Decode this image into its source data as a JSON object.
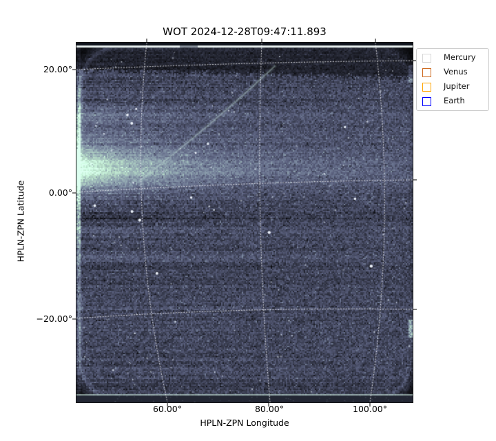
{
  "figure": {
    "title": "WOT 2024-12-28T09:47:11.893",
    "background_color": "#ffffff",
    "x_axis": {
      "label": "HPLN-ZPN Longitude",
      "tick_labels": [
        "60.00°",
        "80.00°",
        "100.00°"
      ]
    },
    "y_axis": {
      "label": "HPLN-ZPN Latitude",
      "tick_labels": [
        "20.00°",
        "0.00°",
        "−20.00°"
      ]
    },
    "legend": {
      "items": [
        {
          "label": "Mercury",
          "color": "#d8d8d8"
        },
        {
          "label": "Venus",
          "color": "#cd691e"
        },
        {
          "label": "Jupiter",
          "color": "#ffa500"
        },
        {
          "label": "Earth",
          "color": "#0000ff"
        }
      ]
    }
  },
  "chart_data": {
    "type": "heatmap",
    "title": "WOT 2024-12-28T09:47:11.893",
    "xlabel": "HPLN-ZPN Longitude",
    "ylabel": "HPLN-ZPN Latitude",
    "x_ticks_deg": [
      60,
      80,
      100
    ],
    "y_ticks_deg": [
      20,
      0,
      -20
    ],
    "xlim_deg": [
      42,
      108
    ],
    "ylim_deg": [
      -33,
      24
    ],
    "grid": "white dotted curved coordinate grid (ZPN projection)",
    "legend_position": "upper right, outside axes",
    "series": [
      {
        "name": "Mercury",
        "marker": "square-outline",
        "marker_color": "#d8d8d8"
      },
      {
        "name": "Venus",
        "marker": "square-outline",
        "marker_color": "#cd691e"
      },
      {
        "name": "Jupiter",
        "marker": "square-outline",
        "marker_color": "#ffa500"
      },
      {
        "name": "Earth",
        "marker": "square-outline",
        "marker_color": "#0000ff"
      }
    ],
    "image_features": [
      "dense dark blue-gray stellar noise field",
      "bright diffuse teal band near 0° latitude, strongest at left edge, fading rightward",
      "faint diagonal streak from about (55°, 2°) up to (81°, 21°)",
      "bright thin horizontal stripe along top edge and bottom edge of frame",
      "dark calibration bands at very top and bottom of frame",
      "dark vignetted corners with bright rounded rim at upper-left",
      "scattered white star points"
    ]
  }
}
